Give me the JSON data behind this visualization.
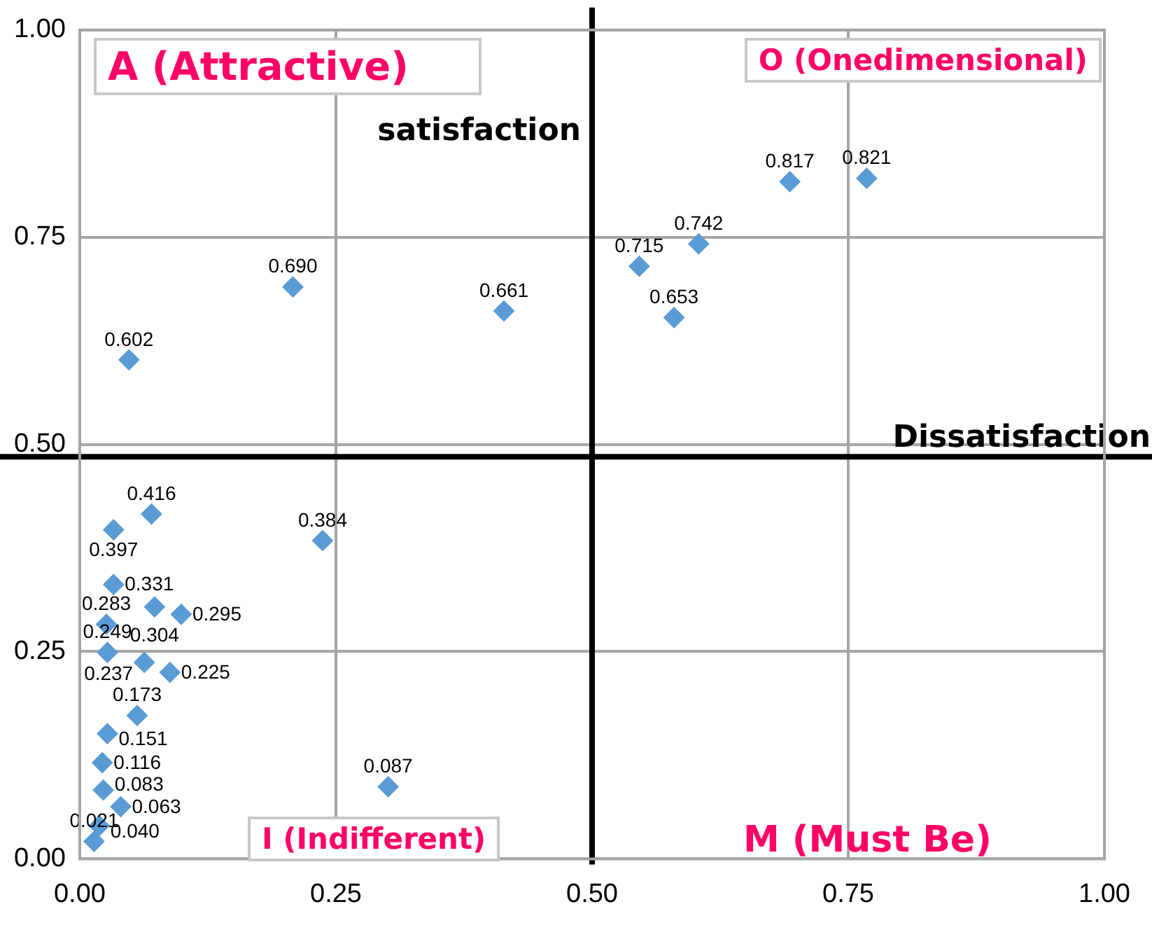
{
  "chart_data": {
    "type": "scatter",
    "x": [
      0.048,
      0.208,
      0.414,
      0.546,
      0.58,
      0.604,
      0.693,
      0.768,
      0.237,
      0.301,
      0.07,
      0.033,
      0.033,
      0.073,
      0.099,
      0.026,
      0.027,
      0.063,
      0.088,
      0.056,
      0.027,
      0.022,
      0.023,
      0.04,
      0.019,
      0.014
    ],
    "values": [
      0.602,
      0.69,
      0.661,
      0.715,
      0.653,
      0.742,
      0.817,
      0.821,
      0.384,
      0.087,
      0.416,
      0.397,
      0.331,
      0.304,
      0.295,
      0.283,
      0.249,
      0.237,
      0.225,
      0.173,
      0.151,
      0.116,
      0.083,
      0.063,
      0.04,
      0.021
    ],
    "value_labels": [
      "0.602",
      "0.690",
      "0.661",
      "0.715",
      "0.653",
      "0.742",
      "0.817",
      "0.821",
      "0.384",
      "0.087",
      "0.416",
      "0.397",
      "0.331",
      "0.304",
      "0.295",
      "0.283",
      "0.249",
      "0.237",
      "0.225",
      "0.173",
      "0.151",
      "0.116",
      "0.083",
      "0.063",
      "0.040",
      "0.021"
    ],
    "color": "#5b9bd5",
    "marker": "diamond",
    "grid": true,
    "legend": false,
    "xlim": [
      0,
      1
    ],
    "xticks": [
      {
        "value": 0,
        "label": "0.00"
      },
      {
        "value": 0.25,
        "label": "0.25"
      },
      {
        "value": 0.5,
        "label": "0.50"
      },
      {
        "value": 0.75,
        "label": "0.75"
      },
      {
        "value": 1,
        "label": "1.00"
      }
    ],
    "ylim": [
      0,
      1
    ],
    "yticks": [
      {
        "value": 0,
        "label": "0.00"
      },
      {
        "value": 0.25,
        "label": "0.25"
      },
      {
        "value": 0.5,
        "label": "0.50"
      },
      {
        "value": 0.75,
        "label": "0.75"
      },
      {
        "value": 1,
        "label": "1.00"
      }
    ],
    "ref_lines": [
      {
        "axis": "x",
        "value": 0.5,
        "label": "satisfaction",
        "color": "#000000"
      },
      {
        "axis": "y",
        "value": 0.485,
        "label": "Dissatisfaction",
        "color": "#000000"
      }
    ],
    "annotations": [
      "A (Attractive)",
      "O (Onedimensional)",
      "I (Indifferent)",
      "M (Must Be)"
    ]
  }
}
